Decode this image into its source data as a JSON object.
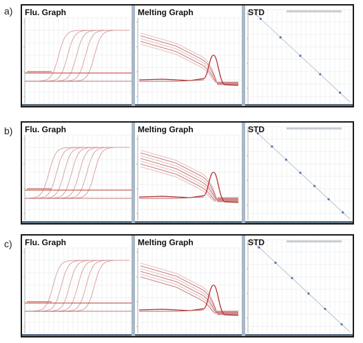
{
  "rows": [
    {
      "label": "a)",
      "panels": [
        "Flu. Graph",
        "Melting Graph",
        "STD"
      ]
    },
    {
      "label": "b)",
      "panels": [
        "Flu. Graph",
        "Melting Graph",
        "STD"
      ]
    },
    {
      "label": "c)",
      "panels": [
        "Flu. Graph",
        "Melting Graph",
        "STD"
      ]
    }
  ],
  "chart_data": [
    {
      "panel": "a) Flu. Graph",
      "type": "line",
      "curve_count": 5,
      "threshold_lines": 2
    },
    {
      "panel": "a) Melting Graph",
      "type": "line",
      "curve_count": 5
    },
    {
      "panel": "a) STD",
      "type": "scatter",
      "points": 5
    },
    {
      "panel": "b) Flu. Graph",
      "type": "line",
      "curve_count": 7,
      "threshold_lines": 2
    },
    {
      "panel": "b) Melting Graph",
      "type": "line",
      "curve_count": 7
    },
    {
      "panel": "b) STD",
      "type": "scatter",
      "points": 7
    },
    {
      "panel": "c) Flu. Graph",
      "type": "line",
      "curve_count": 6,
      "threshold_lines": 2
    },
    {
      "panel": "c) Melting Graph",
      "type": "line",
      "curve_count": 6
    },
    {
      "panel": "c) STD",
      "type": "scatter",
      "points": 6
    }
  ]
}
